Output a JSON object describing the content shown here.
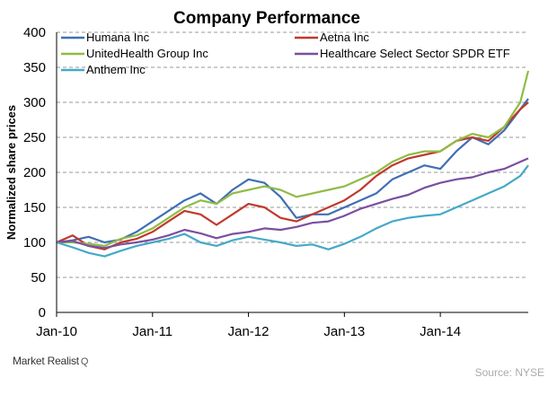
{
  "chart_data": {
    "type": "line",
    "title": "Company Performance",
    "xlabel": "",
    "ylabel": "Normalized share prices",
    "ylim": [
      0,
      400
    ],
    "yticks": [
      0,
      50,
      100,
      150,
      200,
      250,
      300,
      350,
      400
    ],
    "xlim": [
      "2010-01",
      "2014-12"
    ],
    "xticks": [
      "Jan-10",
      "Jan-11",
      "Jan-12",
      "Jan-13",
      "Jan-14"
    ],
    "grid": "horizontal dashed",
    "legend_position": "top, two columns",
    "series": [
      {
        "name": "Humana Inc",
        "color": "#3f6fb4",
        "x": [
          "2010-01",
          "2010-03",
          "2010-05",
          "2010-07",
          "2010-09",
          "2010-11",
          "2011-01",
          "2011-03",
          "2011-05",
          "2011-07",
          "2011-09",
          "2011-11",
          "2012-01",
          "2012-03",
          "2012-05",
          "2012-07",
          "2012-09",
          "2012-11",
          "2013-01",
          "2013-03",
          "2013-05",
          "2013-07",
          "2013-09",
          "2013-11",
          "2014-01",
          "2014-03",
          "2014-05",
          "2014-07",
          "2014-09",
          "2014-11",
          "2014-12"
        ],
        "values": [
          100,
          103,
          108,
          100,
          104,
          115,
          130,
          145,
          160,
          170,
          155,
          175,
          190,
          185,
          165,
          135,
          140,
          140,
          150,
          160,
          170,
          190,
          200,
          210,
          205,
          230,
          250,
          240,
          260,
          290,
          305
        ]
      },
      {
        "name": "Aetna Inc",
        "color": "#c0392b",
        "x": [
          "2010-01",
          "2010-03",
          "2010-05",
          "2010-07",
          "2010-09",
          "2010-11",
          "2011-01",
          "2011-03",
          "2011-05",
          "2011-07",
          "2011-09",
          "2011-11",
          "2012-01",
          "2012-03",
          "2012-05",
          "2012-07",
          "2012-09",
          "2012-11",
          "2013-01",
          "2013-03",
          "2013-05",
          "2013-07",
          "2013-09",
          "2013-11",
          "2014-01",
          "2014-03",
          "2014-05",
          "2014-07",
          "2014-09",
          "2014-11",
          "2014-12"
        ],
        "values": [
          100,
          110,
          95,
          90,
          100,
          105,
          115,
          130,
          145,
          140,
          125,
          140,
          155,
          150,
          135,
          130,
          140,
          150,
          160,
          175,
          195,
          210,
          220,
          225,
          230,
          245,
          250,
          245,
          265,
          290,
          300
        ]
      },
      {
        "name": "UnitedHealth Group Inc",
        "color": "#8fbc45",
        "x": [
          "2010-01",
          "2010-03",
          "2010-05",
          "2010-07",
          "2010-09",
          "2010-11",
          "2011-01",
          "2011-03",
          "2011-05",
          "2011-07",
          "2011-09",
          "2011-11",
          "2012-01",
          "2012-03",
          "2012-05",
          "2012-07",
          "2012-09",
          "2012-11",
          "2013-01",
          "2013-03",
          "2013-05",
          "2013-07",
          "2013-09",
          "2013-11",
          "2014-01",
          "2014-03",
          "2014-05",
          "2014-07",
          "2014-09",
          "2014-11",
          "2014-12"
        ],
        "values": [
          100,
          100,
          98,
          95,
          105,
          110,
          120,
          135,
          150,
          160,
          155,
          170,
          175,
          180,
          175,
          165,
          170,
          175,
          180,
          190,
          200,
          215,
          225,
          230,
          230,
          245,
          255,
          250,
          265,
          300,
          345
        ]
      },
      {
        "name": "Healthcare Select Sector SPDR ETF",
        "color": "#7b4fa0",
        "x": [
          "2010-01",
          "2010-03",
          "2010-05",
          "2010-07",
          "2010-09",
          "2010-11",
          "2011-01",
          "2011-03",
          "2011-05",
          "2011-07",
          "2011-09",
          "2011-11",
          "2012-01",
          "2012-03",
          "2012-05",
          "2012-07",
          "2012-09",
          "2012-11",
          "2013-01",
          "2013-03",
          "2013-05",
          "2013-07",
          "2013-09",
          "2013-11",
          "2014-01",
          "2014-03",
          "2014-05",
          "2014-07",
          "2014-09",
          "2014-11",
          "2014-12"
        ],
        "values": [
          100,
          102,
          95,
          92,
          97,
          100,
          104,
          110,
          118,
          113,
          106,
          112,
          115,
          120,
          118,
          122,
          128,
          130,
          138,
          148,
          155,
          162,
          168,
          178,
          185,
          190,
          193,
          200,
          205,
          215,
          220
        ]
      },
      {
        "name": "Anthem Inc",
        "color": "#45a9c7",
        "x": [
          "2010-01",
          "2010-03",
          "2010-05",
          "2010-07",
          "2010-09",
          "2010-11",
          "2011-01",
          "2011-03",
          "2011-05",
          "2011-07",
          "2011-09",
          "2011-11",
          "2012-01",
          "2012-03",
          "2012-05",
          "2012-07",
          "2012-09",
          "2012-11",
          "2013-01",
          "2013-03",
          "2013-05",
          "2013-07",
          "2013-09",
          "2013-11",
          "2014-01",
          "2014-03",
          "2014-05",
          "2014-07",
          "2014-09",
          "2014-11",
          "2014-12"
        ],
        "values": [
          100,
          93,
          85,
          80,
          88,
          95,
          100,
          105,
          112,
          100,
          95,
          103,
          108,
          104,
          100,
          95,
          97,
          90,
          98,
          108,
          120,
          130,
          135,
          138,
          140,
          150,
          160,
          170,
          180,
          195,
          210
        ]
      }
    ]
  },
  "branding": {
    "logo_text": "Market Realist",
    "logo_mark": "Q"
  },
  "source": "Source: NYSE"
}
